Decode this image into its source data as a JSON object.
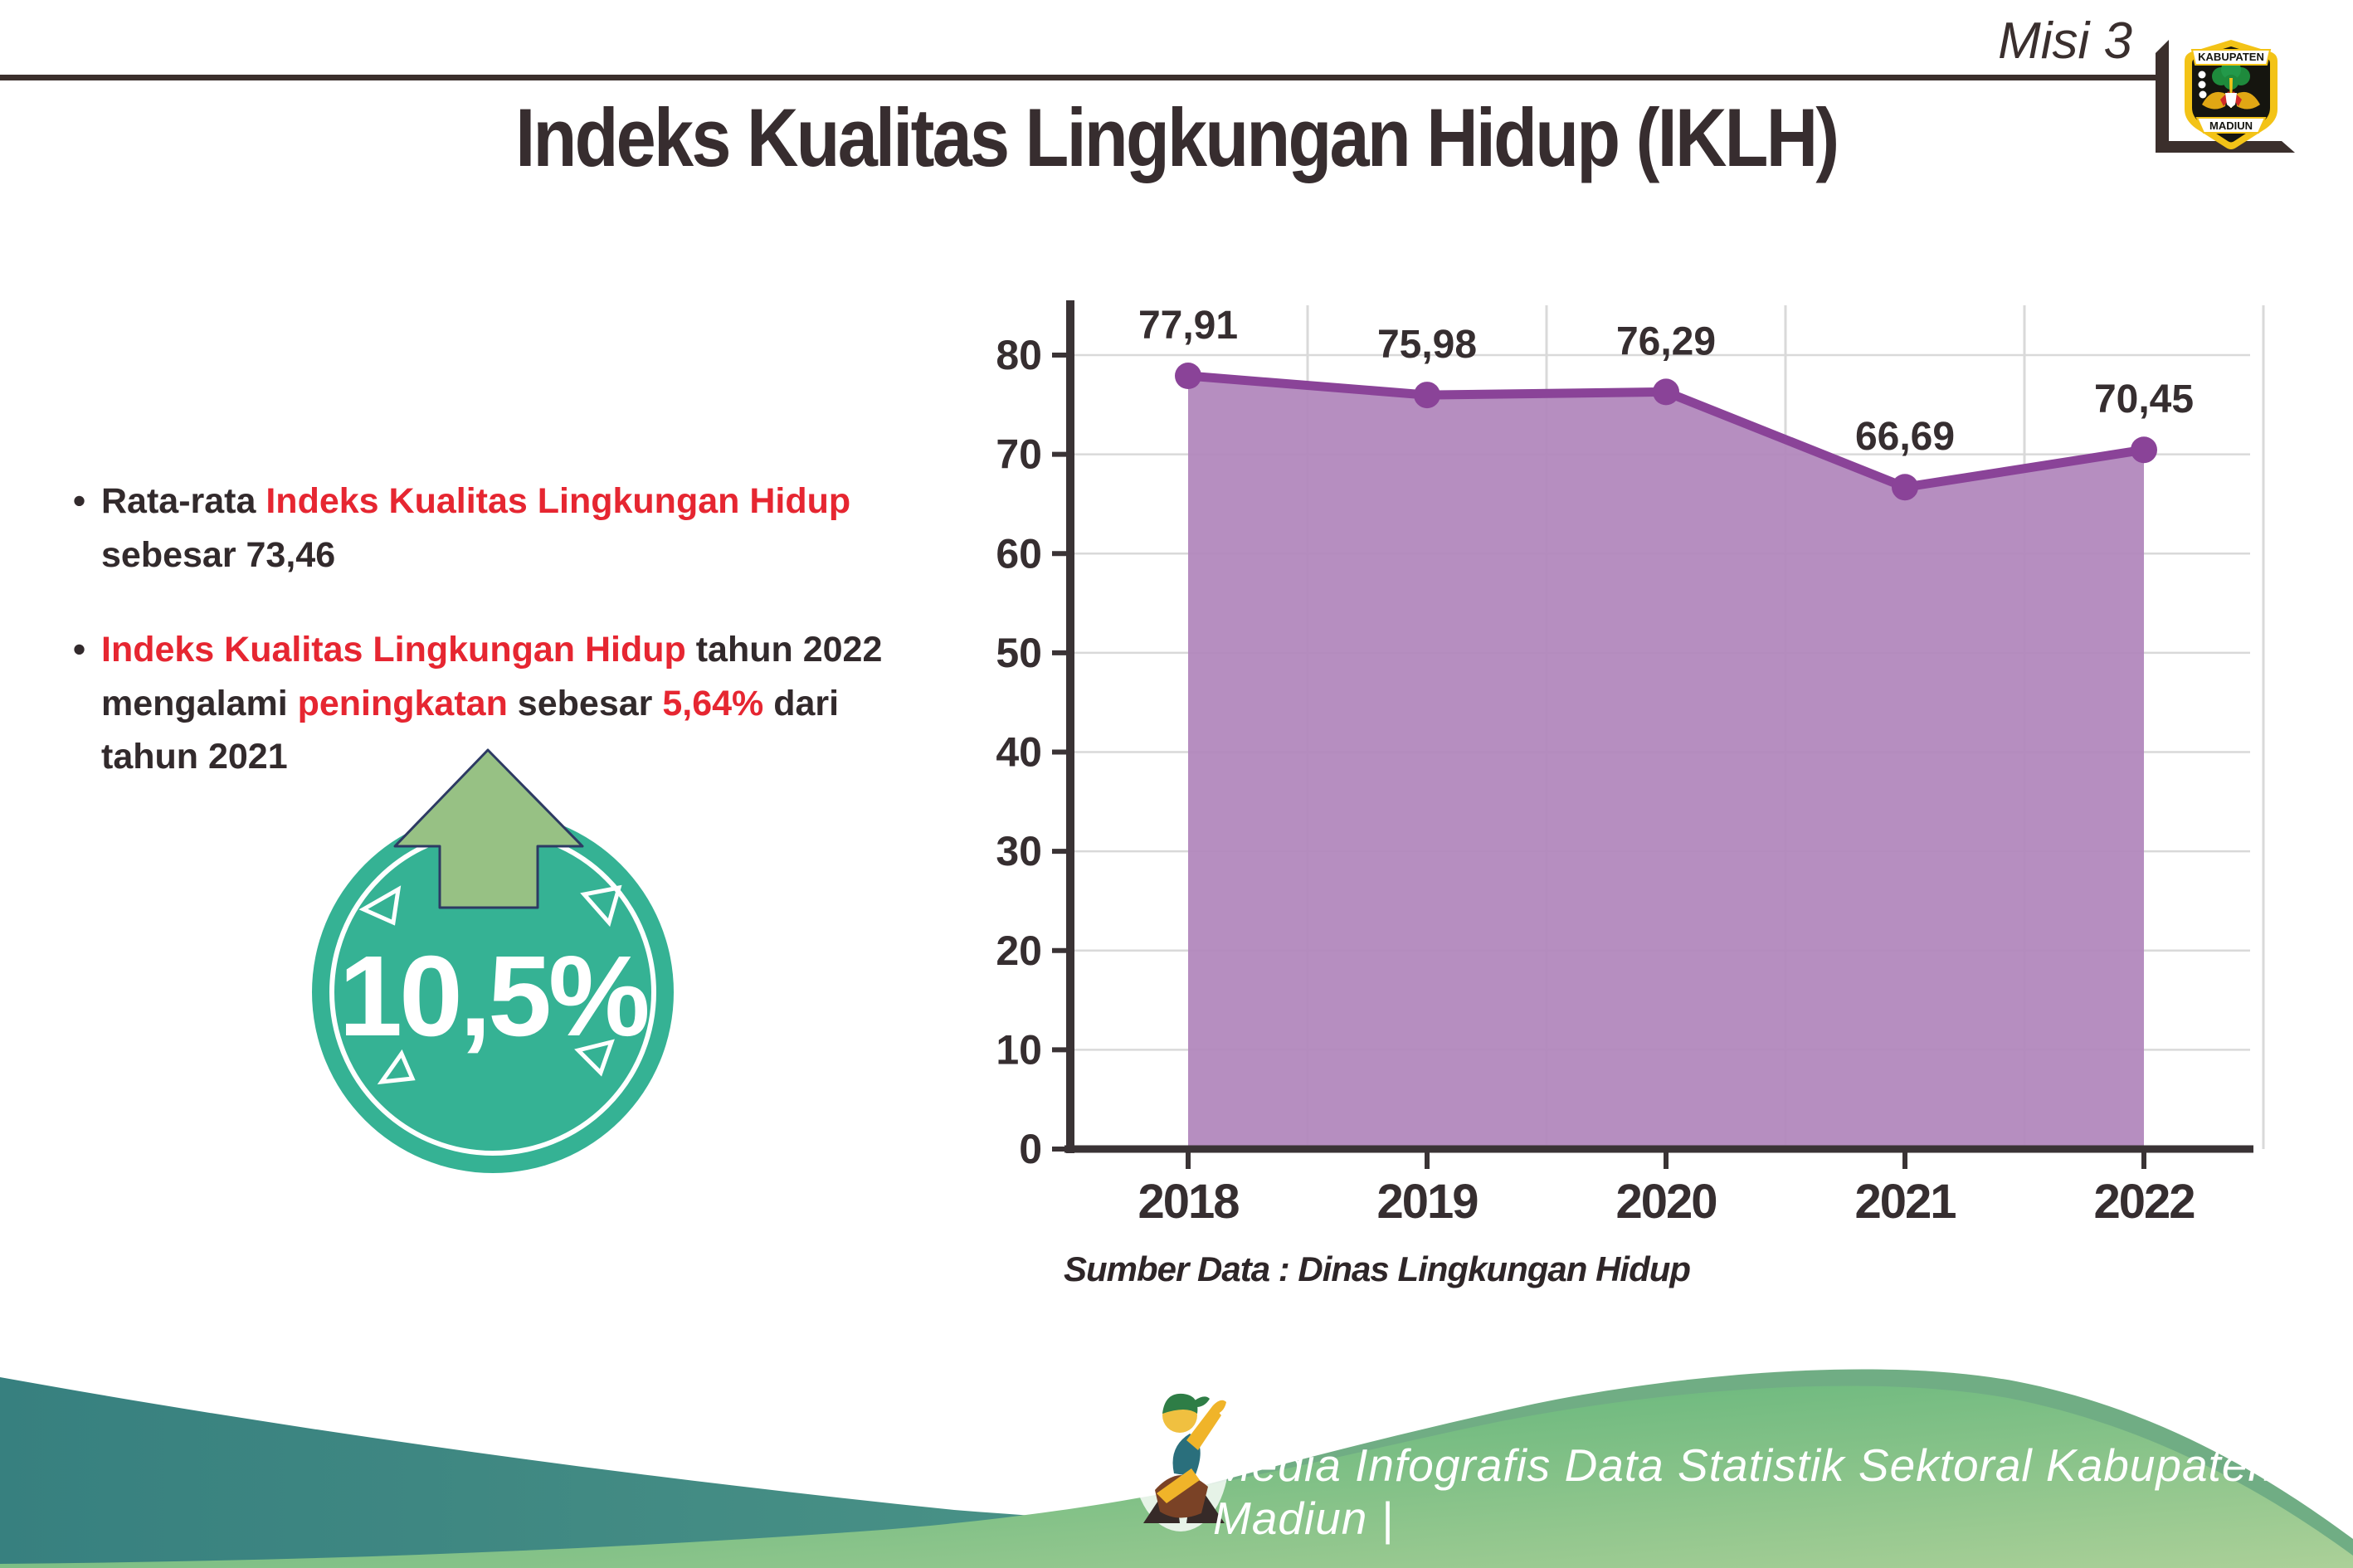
{
  "page": {
    "misi": "Misi 3",
    "title": "Indeks Kualitas Lingkungan Hidup (IKLH)"
  },
  "logo": {
    "top": "KABUPATEN",
    "bottom": "MADIUN"
  },
  "bullets": [
    {
      "lines": [
        [
          {
            "t": "Rata-rata ",
            "red": false
          },
          {
            "t": "Indeks Kualitas Lingkungan Hidup",
            "red": true
          }
        ],
        [
          {
            "t": "sebesar 73,46",
            "red": false
          }
        ]
      ]
    },
    {
      "lines": [
        [
          {
            "t": "Indeks Kualitas Lingkungan Hidup",
            "red": true
          },
          {
            "t": " tahun 2022",
            "red": false
          }
        ],
        [
          {
            "t": "mengalami ",
            "red": false
          },
          {
            "t": "peningkatan",
            "red": true
          },
          {
            "t": " sebesar ",
            "red": false
          },
          {
            "t": "5,64%",
            "red": true
          },
          {
            "t": " dari",
            "red": false
          }
        ],
        [
          {
            "t": "tahun 2021",
            "red": false
          }
        ]
      ]
    }
  ],
  "badge": {
    "value": "10,5%"
  },
  "chart_data": {
    "type": "area",
    "title": "",
    "categories": [
      "2018",
      "2019",
      "2020",
      "2021",
      "2022"
    ],
    "values": [
      77.91,
      75.98,
      76.29,
      66.69,
      70.45
    ],
    "labels": [
      "77,91",
      "75,98",
      "76,29",
      "66,69",
      "70,45"
    ],
    "xlabel": "",
    "ylabel": "",
    "ylim": [
      0,
      80
    ],
    "ytick_step": 10,
    "grid": true,
    "legend": "none",
    "fill_color": "#b288bd",
    "line_color": "#8a4398",
    "axis_color": "#3a3335",
    "grid_color": "#d9d9d9"
  },
  "source_text": "Sumber Data : Dinas Lingkungan Hidup",
  "footer": {
    "text": "Media Infografis Data Statistik Sektoral Kabupaten Madiun |"
  },
  "colors": {
    "accent_red": "#e62631",
    "badge_teal": "#35b294",
    "arrow_green": "#97c184",
    "wave_teal": "#37807f",
    "wave_green": "#4fae72"
  }
}
